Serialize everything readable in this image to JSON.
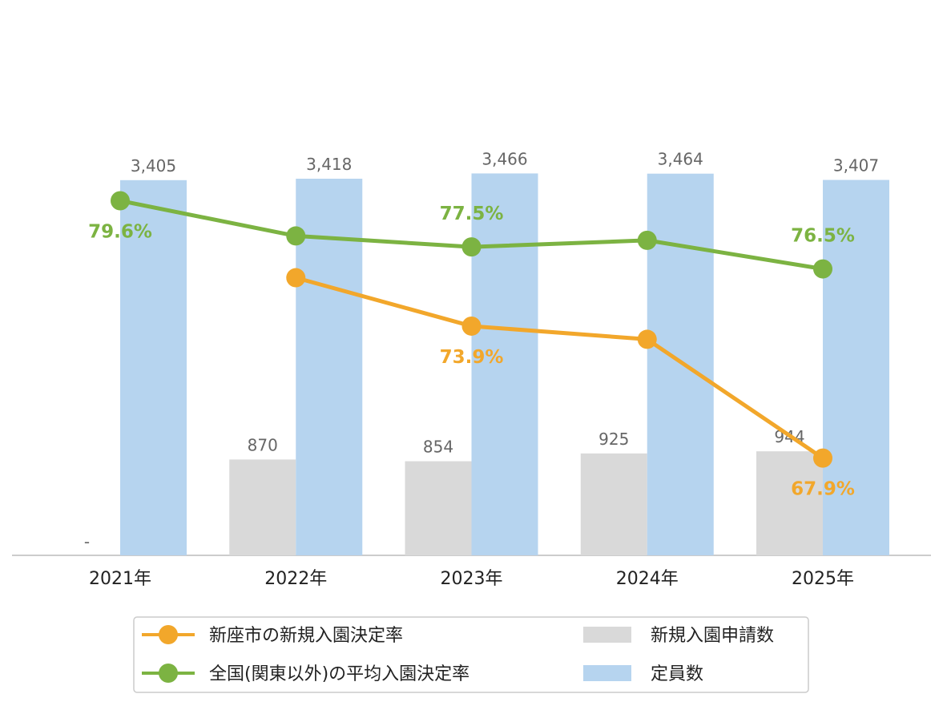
{
  "chart_data": {
    "type": "bar+line",
    "categories": [
      "2021年",
      "2022年",
      "2023年",
      "2024年",
      "2025年"
    ],
    "bar_series": [
      {
        "name": "新規入園申請数",
        "values": [
          null,
          870,
          854,
          925,
          944
        ],
        "labels": [
          "-",
          "870",
          "854",
          "925",
          "944"
        ],
        "color": "#d9d9d9"
      },
      {
        "name": "定員数",
        "values": [
          3405,
          3418,
          3466,
          3464,
          3407
        ],
        "labels": [
          "3,405",
          "3,418",
          "3,466",
          "3,464",
          "3,407"
        ],
        "color": "#b6d4ef"
      }
    ],
    "line_series": [
      {
        "name": "新座市の新規入園決定率",
        "values": [
          null,
          76.1,
          73.9,
          73.3,
          67.9
        ],
        "labels": [
          "",
          "",
          "73.9%",
          "",
          "67.9%"
        ],
        "color": "#f2a72b"
      },
      {
        "name": "全国(関東以外)の平均入園決定率",
        "values": [
          79.6,
          78.0,
          77.5,
          77.8,
          76.5
        ],
        "labels": [
          "79.6%",
          "",
          "77.5%",
          "",
          "76.5%"
        ],
        "color": "#7cb342"
      }
    ],
    "legend_position": "bottom",
    "grid": false
  }
}
